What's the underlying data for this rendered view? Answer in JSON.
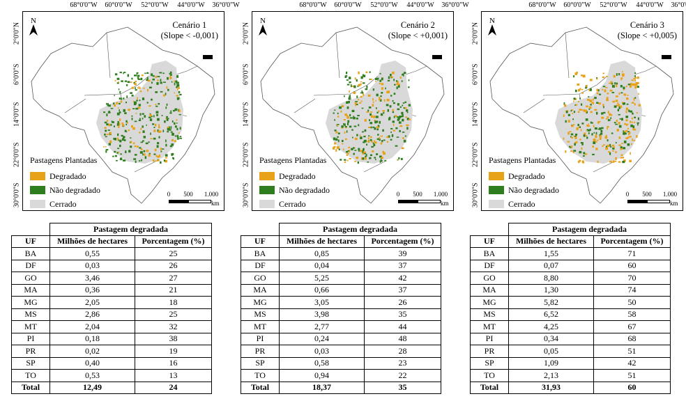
{
  "longitude_labels": [
    "68°0'0\"W",
    "60°0'0\"W",
    "52°0'0\"W",
    "44°0'0\"W",
    "36°0'0\"W"
  ],
  "latitude_labels": [
    "2°0'0\"N",
    "6°0'0\"S",
    "14°0'0\"S",
    "22°0'0\"S",
    "30°0'0\"S"
  ],
  "north_arrow": "N",
  "legend": {
    "title": "Pastagens Plantadas",
    "items": [
      {
        "label": "Degradado",
        "color": "#e8a21a"
      },
      {
        "label": "Não degradado",
        "color": "#2e7d1e"
      },
      {
        "label": "Cerrado",
        "color": "#d9d9d9"
      }
    ]
  },
  "scale_bar": {
    "ticks": [
      "0",
      "500",
      "1.000"
    ],
    "unit": "km"
  },
  "table_headers": {
    "group": "Pastagem degradada",
    "uf": "UF",
    "millions": "Milhões de hectares",
    "percent": "Porcentagem (%)"
  },
  "scenarios": [
    {
      "title": "Cenário 1",
      "slope": "(Slope < -0,001)",
      "rows": [
        {
          "uf": "BA",
          "mh": "0,55",
          "pct": "25"
        },
        {
          "uf": "DF",
          "mh": "0,03",
          "pct": "26"
        },
        {
          "uf": "GO",
          "mh": "3,46",
          "pct": "27"
        },
        {
          "uf": "MA",
          "mh": "0,36",
          "pct": "21"
        },
        {
          "uf": "MG",
          "mh": "2,05",
          "pct": "18"
        },
        {
          "uf": "MS",
          "mh": "2,86",
          "pct": "25"
        },
        {
          "uf": "MT",
          "mh": "2,04",
          "pct": "32"
        },
        {
          "uf": "PI",
          "mh": "0,18",
          "pct": "38"
        },
        {
          "uf": "PR",
          "mh": "0,02",
          "pct": "19"
        },
        {
          "uf": "SP",
          "mh": "0,40",
          "pct": "16"
        },
        {
          "uf": "TO",
          "mh": "0,53",
          "pct": "13"
        }
      ],
      "total": {
        "label": "Total",
        "mh": "12,49",
        "pct": "24"
      }
    },
    {
      "title": "Cenário 2",
      "slope": "(Slope < +0,001)",
      "rows": [
        {
          "uf": "BA",
          "mh": "0,85",
          "pct": "39"
        },
        {
          "uf": "DF",
          "mh": "0,04",
          "pct": "37"
        },
        {
          "uf": "GO",
          "mh": "5,25",
          "pct": "42"
        },
        {
          "uf": "MA",
          "mh": "0,66",
          "pct": "37"
        },
        {
          "uf": "MG",
          "mh": "3,05",
          "pct": "26"
        },
        {
          "uf": "MS",
          "mh": "3,98",
          "pct": "35"
        },
        {
          "uf": "MT",
          "mh": "2,77",
          "pct": "44"
        },
        {
          "uf": "PI",
          "mh": "0,24",
          "pct": "48"
        },
        {
          "uf": "PR",
          "mh": "0,03",
          "pct": "28"
        },
        {
          "uf": "SP",
          "mh": "0,58",
          "pct": "23"
        },
        {
          "uf": "TO",
          "mh": "0,94",
          "pct": "22"
        }
      ],
      "total": {
        "label": "Total",
        "mh": "18,37",
        "pct": "35"
      }
    },
    {
      "title": "Cenário 3",
      "slope": "(Slope < +0,005)",
      "rows": [
        {
          "uf": "BA",
          "mh": "1,55",
          "pct": "71"
        },
        {
          "uf": "DF",
          "mh": "0,07",
          "pct": "60"
        },
        {
          "uf": "GO",
          "mh": "8,80",
          "pct": "70"
        },
        {
          "uf": "MA",
          "mh": "1,30",
          "pct": "74"
        },
        {
          "uf": "MG",
          "mh": "5,82",
          "pct": "50"
        },
        {
          "uf": "MS",
          "mh": "6,52",
          "pct": "58"
        },
        {
          "uf": "MT",
          "mh": "4,25",
          "pct": "67"
        },
        {
          "uf": "PI",
          "mh": "0,34",
          "pct": "68"
        },
        {
          "uf": "PR",
          "mh": "0,05",
          "pct": "51"
        },
        {
          "uf": "SP",
          "mh": "1,09",
          "pct": "42"
        },
        {
          "uf": "TO",
          "mh": "2,13",
          "pct": "51"
        }
      ],
      "total": {
        "label": "Total",
        "mh": "31,93",
        "pct": "60"
      }
    }
  ]
}
